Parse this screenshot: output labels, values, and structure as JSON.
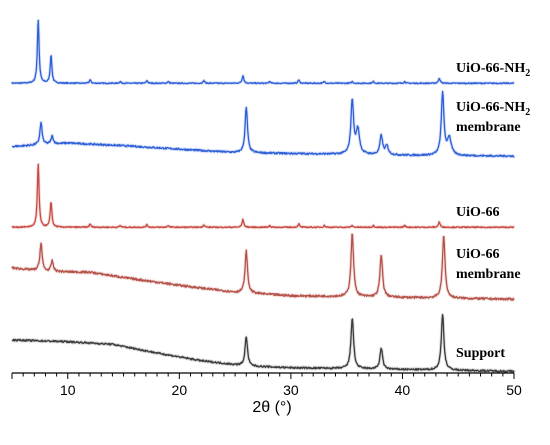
{
  "chart_data": {
    "type": "line",
    "xlabel": "2θ (°)",
    "ylabel": "",
    "xlim": [
      5,
      50
    ],
    "x_ticks": [
      10,
      20,
      30,
      40,
      50
    ],
    "grid": false,
    "y_axis_visible": false,
    "series": [
      {
        "name": "UiO-66-NH",
        "name_sub": "2",
        "name_suffix": "",
        "color": "#2f5fd8",
        "offset": 1.0,
        "baseline": [
          [
            5,
            2.0
          ],
          [
            50,
            2.0
          ]
        ],
        "noise": 0.6,
        "peaks": [
          [
            7.35,
            73,
            0.09
          ],
          [
            8.5,
            32,
            0.09
          ],
          [
            12.0,
            4,
            0.08
          ],
          [
            14.7,
            2,
            0.08
          ],
          [
            17.1,
            3,
            0.08
          ],
          [
            19.0,
            2,
            0.08
          ],
          [
            22.2,
            3,
            0.08
          ],
          [
            25.7,
            9,
            0.09
          ],
          [
            28.1,
            2,
            0.08
          ],
          [
            30.7,
            4,
            0.08
          ],
          [
            33.0,
            2,
            0.08
          ],
          [
            35.5,
            2,
            0.08
          ],
          [
            37.4,
            2,
            0.08
          ],
          [
            40.2,
            2,
            0.08
          ],
          [
            43.3,
            6,
            0.09
          ]
        ]
      },
      {
        "name": "UiO-66-NH",
        "name_sub": "2",
        "name_suffix": "membrane",
        "color": "#2f5fd8",
        "offset": 0.5,
        "baseline": [
          [
            5,
            12
          ],
          [
            10,
            16
          ],
          [
            15,
            13
          ],
          [
            20,
            9
          ],
          [
            25,
            5
          ],
          [
            30,
            4
          ],
          [
            40,
            2
          ],
          [
            50,
            1
          ]
        ],
        "noise": 1.0,
        "peaks": [
          [
            7.6,
            25,
            0.12
          ],
          [
            8.6,
            9,
            0.12
          ],
          [
            26.0,
            52,
            0.13
          ],
          [
            35.5,
            62,
            0.14
          ],
          [
            36.0,
            28,
            0.18
          ],
          [
            38.1,
            22,
            0.14
          ],
          [
            38.6,
            10,
            0.16
          ],
          [
            43.6,
            72,
            0.14
          ],
          [
            44.2,
            20,
            0.2
          ]
        ]
      },
      {
        "name": "UiO-66",
        "name_sub": "",
        "name_suffix": "",
        "color": "#c84a42",
        "offset": 0.0,
        "baseline": [
          [
            5,
            2.0
          ],
          [
            50,
            2.0
          ]
        ],
        "noise": 0.6,
        "peaks": [
          [
            7.35,
            73,
            0.09
          ],
          [
            8.5,
            29,
            0.09
          ],
          [
            12.0,
            4,
            0.08
          ],
          [
            14.7,
            2,
            0.08
          ],
          [
            17.1,
            3,
            0.08
          ],
          [
            19.0,
            2,
            0.08
          ],
          [
            22.2,
            3,
            0.08
          ],
          [
            25.7,
            9,
            0.09
          ],
          [
            28.1,
            2,
            0.08
          ],
          [
            30.7,
            4,
            0.08
          ],
          [
            33.0,
            2,
            0.08
          ],
          [
            35.5,
            2,
            0.08
          ],
          [
            37.4,
            2,
            0.08
          ],
          [
            40.2,
            2,
            0.08
          ],
          [
            43.3,
            6,
            0.09
          ]
        ]
      },
      {
        "name": "UiO-66",
        "name_sub": "",
        "name_suffix": "membrane",
        "color": "#b5524a",
        "offset": -0.5,
        "baseline": [
          [
            5,
            38
          ],
          [
            8,
            34
          ],
          [
            12,
            33
          ],
          [
            15,
            27
          ],
          [
            20,
            18
          ],
          [
            25,
            10
          ],
          [
            30,
            6
          ],
          [
            40,
            4
          ],
          [
            50,
            2
          ]
        ],
        "noise": 1.2,
        "peaks": [
          [
            7.6,
            32,
            0.12
          ],
          [
            8.6,
            12,
            0.12
          ],
          [
            26.0,
            48,
            0.13
          ],
          [
            35.5,
            72,
            0.14
          ],
          [
            38.1,
            48,
            0.14
          ],
          [
            43.7,
            72,
            0.14
          ]
        ]
      },
      {
        "name": "Support",
        "name_sub": "",
        "name_suffix": "",
        "color": "#3d3d3d",
        "offset": -1.0,
        "baseline": [
          [
            5,
            38
          ],
          [
            10,
            36
          ],
          [
            14,
            33
          ],
          [
            18,
            23
          ],
          [
            22,
            14
          ],
          [
            26,
            8
          ],
          [
            30,
            6
          ],
          [
            40,
            4
          ],
          [
            50,
            2
          ]
        ],
        "noise": 1.0,
        "peaks": [
          [
            26.0,
            34,
            0.13
          ],
          [
            35.5,
            58,
            0.14
          ],
          [
            38.1,
            24,
            0.14
          ],
          [
            43.6,
            64,
            0.14
          ]
        ]
      }
    ]
  }
}
